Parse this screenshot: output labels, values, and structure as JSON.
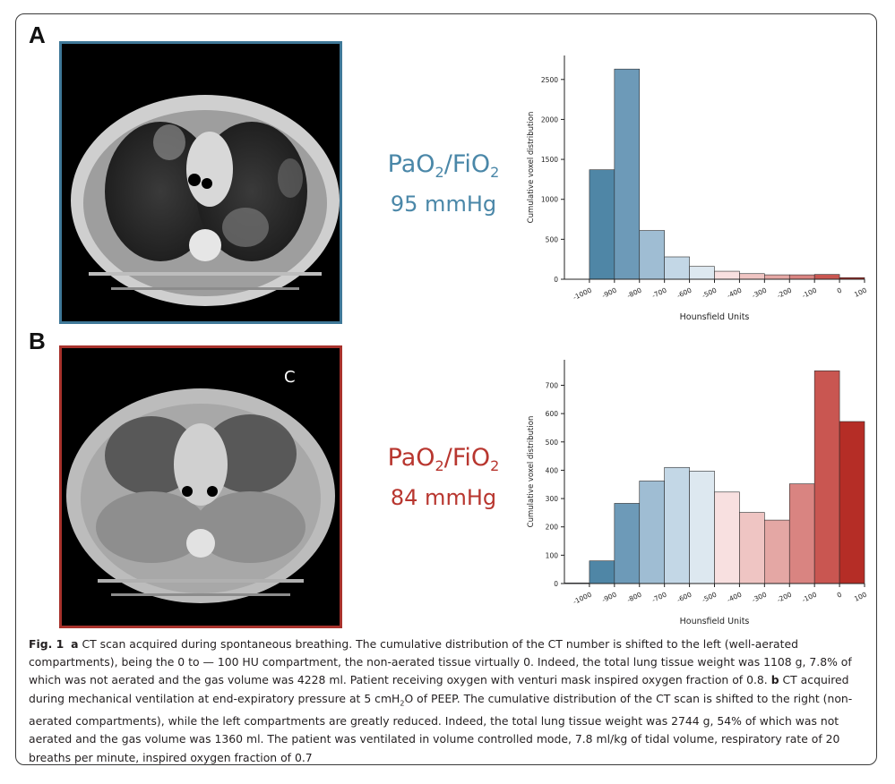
{
  "panels": [
    {
      "letter": "A",
      "ratio": {
        "pre": "PaO",
        "sub1": "2",
        "mid": "/FiO",
        "sub2": "2"
      },
      "value": "95 mmHg",
      "color": "#4a87a8",
      "ct_frame_color": "#3f7898"
    },
    {
      "letter": "B",
      "ratio": {
        "pre": "PaO",
        "sub1": "2",
        "mid": "/FiO",
        "sub2": "2"
      },
      "value": "84 mmHg",
      "color": "#b8362f",
      "ct_frame_color": "#a8322c"
    }
  ],
  "ct_annotation": "C",
  "chart_data": [
    {
      "type": "bar",
      "panel": "A",
      "xlabel": "Hounsfield Units",
      "ylabel": "Cumulative voxel distribution",
      "x_ticks": [
        "-1000",
        "-900",
        "-800",
        "-700",
        "-600",
        "-500",
        "-400",
        "-300",
        "-200",
        "-100",
        "0",
        "100"
      ],
      "y_ticks": [
        0,
        500,
        1000,
        1500,
        2000,
        2500
      ],
      "ylim": [
        0,
        2800
      ],
      "xlim": [
        -1100,
        100
      ],
      "bins": [
        [
          -1000,
          -900
        ],
        [
          -900,
          -800
        ],
        [
          -800,
          -700
        ],
        [
          -700,
          -600
        ],
        [
          -600,
          -500
        ],
        [
          -500,
          -400
        ],
        [
          -400,
          -300
        ],
        [
          -300,
          -200
        ],
        [
          -200,
          -100
        ],
        [
          -100,
          0
        ],
        [
          0,
          100
        ]
      ],
      "values": [
        1370,
        2630,
        610,
        280,
        160,
        100,
        70,
        55,
        55,
        60,
        20
      ],
      "colors": [
        "#4f86a6",
        "#6d9ab8",
        "#9fbdd3",
        "#c3d7e6",
        "#dde8f0",
        "#f8e0e0",
        "#efc5c3",
        "#e4a7a4",
        "#d98481",
        "#c95651",
        "#b52d26"
      ]
    },
    {
      "type": "bar",
      "panel": "B",
      "xlabel": "Hounsfield Units",
      "ylabel": "Cumulative voxel distribution",
      "x_ticks": [
        "-1000",
        "-900",
        "-800",
        "-700",
        "-600",
        "-500",
        "-400",
        "-300",
        "-200",
        "-100",
        "0",
        "100"
      ],
      "y_ticks": [
        0,
        100,
        200,
        300,
        400,
        500,
        600,
        700
      ],
      "ylim": [
        0,
        790
      ],
      "xlim": [
        -1100,
        100
      ],
      "bins": [
        [
          -1100,
          -1000
        ],
        [
          -1000,
          -900
        ],
        [
          -900,
          -800
        ],
        [
          -800,
          -700
        ],
        [
          -700,
          -600
        ],
        [
          -600,
          -500
        ],
        [
          -500,
          -400
        ],
        [
          -400,
          -300
        ],
        [
          -300,
          -200
        ],
        [
          -200,
          -100
        ],
        [
          -100,
          0
        ],
        [
          0,
          100
        ]
      ],
      "values": [
        2,
        80,
        283,
        362,
        410,
        397,
        323,
        251,
        224,
        352,
        751,
        572
      ],
      "colors": [
        "#3e7597",
        "#4f86a6",
        "#6d9ab8",
        "#9fbdd3",
        "#c3d7e6",
        "#dde8f0",
        "#f8e0e0",
        "#efc5c3",
        "#e4a7a4",
        "#d98481",
        "#c95651",
        "#b52d26"
      ]
    }
  ],
  "caption": {
    "fig_label": "Fig. 1",
    "a_label": "a",
    "a_text": "CT scan acquired during spontaneous breathing. The cumulative distribution of the CT number is shifted to the left (well-aerated compartments), being the 0 to — 100 HU compartment, the non-aerated tissue virtually 0. Indeed, the total lung tissue weight was 1108 g, 7.8% of which was not aerated and the gas volume was 4228 ml. Patient receiving oxygen with venturi mask inspired oxygen fraction of 0.8.",
    "b_label": "b",
    "b_text_1": "CT acquired during mechanical ventilation at end-expiratory pressure at 5 cmH",
    "b_sub": "2",
    "b_text_2": "O of PEEP. The cumulative distribution of the CT scan is shifted to the right (non-aerated compartments), while the left compartments are greatly reduced. Indeed, the total lung tissue weight was 2744 g, 54% of which was not aerated and the gas volume was 1360 ml. The patient was ventilated in volume controlled mode, 7.8 ml/kg of tidal volume, respiratory rate of 20 breaths per minute, inspired oxygen fraction of 0.7"
  }
}
